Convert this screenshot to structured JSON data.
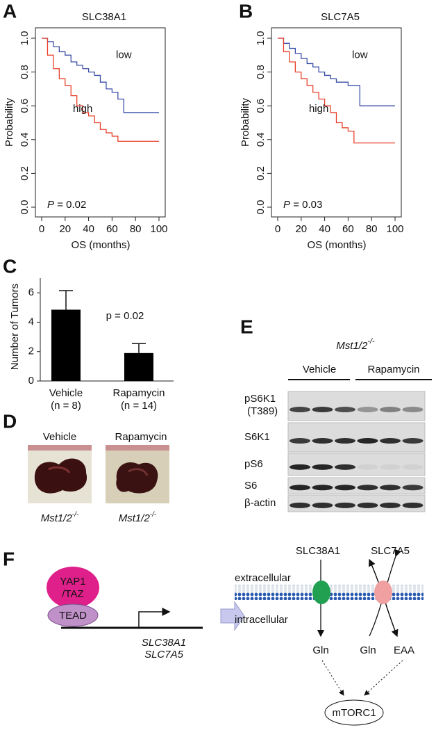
{
  "chart_data": [
    {
      "type": "line",
      "step": true,
      "panel_label": "A",
      "title": "SLC38A1",
      "xlabel": "OS (months)",
      "ylabel": "Probability",
      "annotation": {
        "symbol": "P",
        "text": "= 0.02"
      },
      "x": [
        0,
        5,
        10,
        15,
        20,
        25,
        30,
        35,
        40,
        45,
        50,
        55,
        60,
        65,
        70,
        75,
        80,
        85,
        90,
        95,
        100
      ],
      "series": [
        {
          "name": "low",
          "color": "#3a4fa8",
          "values": [
            1,
            0.98,
            0.95,
            0.92,
            0.9,
            0.86,
            0.84,
            0.82,
            0.8,
            0.78,
            0.74,
            0.7,
            0.68,
            0.64,
            0.56,
            0.56,
            0.56,
            0.56,
            0.56,
            0.56,
            0.56
          ]
        },
        {
          "name": "high",
          "color": "#e8402a",
          "values": [
            1,
            0.9,
            0.82,
            0.76,
            0.72,
            0.66,
            0.6,
            0.56,
            0.54,
            0.5,
            0.46,
            0.44,
            0.42,
            0.39,
            0.39,
            0.39,
            0.39,
            0.39,
            0.39,
            0.39,
            0.39
          ]
        }
      ],
      "xlim": [
        0,
        100
      ],
      "xticks": [
        0,
        20,
        40,
        60,
        80,
        100
      ],
      "ylim": [
        0,
        1
      ],
      "yticks": [
        {
          "value": 0,
          "label": "0.0"
        },
        0.2,
        0.4,
        0.6,
        0.8,
        {
          "value": 1,
          "label": "1.0"
        }
      ]
    },
    {
      "type": "line",
      "step": true,
      "panel_label": "B",
      "title": "SLC7A5",
      "xlabel": "OS (months)",
      "ylabel": "Probability",
      "annotation": {
        "symbol": "P",
        "text": "= 0.03"
      },
      "x": [
        0,
        5,
        10,
        15,
        20,
        25,
        30,
        35,
        40,
        45,
        50,
        55,
        60,
        65,
        70,
        75,
        80,
        85,
        90,
        95,
        100
      ],
      "series": [
        {
          "name": "low",
          "color": "#3a4fa8",
          "values": [
            1,
            0.97,
            0.94,
            0.91,
            0.88,
            0.85,
            0.83,
            0.8,
            0.78,
            0.76,
            0.74,
            0.74,
            0.72,
            0.72,
            0.6,
            0.6,
            0.6,
            0.6,
            0.6,
            0.6,
            0.6
          ]
        },
        {
          "name": "high",
          "color": "#e8402a",
          "values": [
            1,
            0.92,
            0.86,
            0.8,
            0.76,
            0.72,
            0.68,
            0.64,
            0.6,
            0.56,
            0.5,
            0.47,
            0.45,
            0.38,
            0.38,
            0.38,
            0.38,
            0.38,
            0.38,
            0.38,
            0.38
          ]
        }
      ],
      "xlim": [
        0,
        100
      ],
      "xticks": [
        0,
        20,
        40,
        60,
        80,
        100
      ],
      "ylim": [
        0,
        1
      ],
      "yticks": [
        {
          "value": 0,
          "label": "0.0"
        },
        0.2,
        0.4,
        0.6,
        0.8,
        {
          "value": 1,
          "label": "1.0"
        }
      ]
    },
    {
      "type": "bar",
      "panel_label": "C",
      "ylabel": "Number of Tumors",
      "annotation": "p = 0.02",
      "categories": [
        "Vehicle",
        "Rapamycin"
      ],
      "category_notes": [
        "(n = 8)",
        "(n = 14)"
      ],
      "values": [
        4.85,
        1.9
      ],
      "errors": [
        1.3,
        0.65
      ],
      "color": "#000000",
      "ylim": [
        0,
        7
      ],
      "yticks": [
        0,
        2,
        4,
        6
      ]
    }
  ],
  "panel_d": {
    "label": "D",
    "titles": [
      "Vehicle",
      "Rapamycin"
    ],
    "captions": [
      {
        "gene": "Mst1/2",
        "superscript": "-/-"
      },
      {
        "gene": "Mst1/2",
        "superscript": "-/-"
      }
    ]
  },
  "panel_e": {
    "label": "E",
    "genotype": {
      "gene": "Mst1/2",
      "superscript": "-/-"
    },
    "groups": [
      "Vehicle",
      "Rapamycin"
    ],
    "rows": [
      {
        "name": "pS6K1",
        "note": "(T389)"
      },
      {
        "name": "S6K1"
      },
      {
        "name": "pS6"
      },
      {
        "name": "S6"
      },
      {
        "name": "β-actin"
      }
    ]
  },
  "panel_f": {
    "label": "F",
    "yap": [
      "YAP1",
      "/TAZ"
    ],
    "tead": "TEAD",
    "genes": [
      "SLC38A1",
      "SLC7A5"
    ],
    "extracellular": "extracellular",
    "intracellular": "intracellular",
    "transporters": [
      "SLC38A1",
      "SLC7A5"
    ],
    "products": [
      "Gln",
      "Gln",
      "EAA"
    ],
    "target": "mTORC1"
  }
}
